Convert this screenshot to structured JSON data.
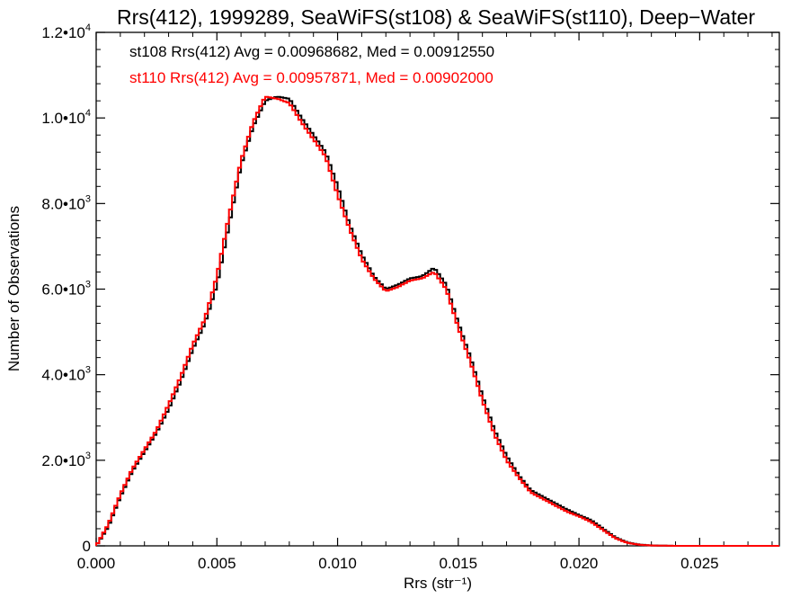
{
  "chart_data": {
    "type": "line",
    "title": "Rrs(412), 1999289, SeaWiFS(st108) & SeaWiFS(st110), Deep−Water",
    "xlabel": "Rrs (str⁻¹)",
    "ylabel": "Number of Observations",
    "xlim": [
      0.0,
      0.0283
    ],
    "ylim": [
      0,
      12000
    ],
    "x_ticks": [
      0.0,
      0.005,
      0.01,
      0.015,
      0.02,
      0.025
    ],
    "x_tick_labels": [
      "0.000",
      "0.005",
      "0.010",
      "0.015",
      "0.020",
      "0.025"
    ],
    "y_ticks": [
      0,
      2000,
      4000,
      6000,
      8000,
      10000,
      12000
    ],
    "y_tick_labels": [
      {
        "mant": "0",
        "exp": ""
      },
      {
        "mant": "2.0•10",
        "exp": "3"
      },
      {
        "mant": "4.0•10",
        "exp": "3"
      },
      {
        "mant": "6.0•10",
        "exp": "3"
      },
      {
        "mant": "8.0•10",
        "exp": "3"
      },
      {
        "mant": "1.0•10",
        "exp": "4"
      },
      {
        "mant": "1.2•10",
        "exp": "4"
      }
    ],
    "grid": false,
    "legend_placement": "top-left",
    "series": [
      {
        "name": "st108",
        "color": "#000000",
        "legend_text": "st108 Rrs(412) Avg = 0.00968682, Med = 0.00912550",
        "points": [
          [
            0.0,
            0
          ],
          [
            0.0005,
            450
          ],
          [
            0.001,
            1150
          ],
          [
            0.0015,
            1750
          ],
          [
            0.002,
            2200
          ],
          [
            0.0025,
            2650
          ],
          [
            0.003,
            3200
          ],
          [
            0.0035,
            3850
          ],
          [
            0.004,
            4600
          ],
          [
            0.0045,
            5200
          ],
          [
            0.005,
            6100
          ],
          [
            0.0055,
            7500
          ],
          [
            0.006,
            8900
          ],
          [
            0.0065,
            9800
          ],
          [
            0.007,
            10400
          ],
          [
            0.0075,
            10500
          ],
          [
            0.008,
            10450
          ],
          [
            0.0085,
            10000
          ],
          [
            0.009,
            9600
          ],
          [
            0.0095,
            9200
          ],
          [
            0.01,
            8400
          ],
          [
            0.0105,
            7500
          ],
          [
            0.011,
            6800
          ],
          [
            0.0115,
            6300
          ],
          [
            0.012,
            6000
          ],
          [
            0.0125,
            6100
          ],
          [
            0.013,
            6250
          ],
          [
            0.0135,
            6300
          ],
          [
            0.014,
            6500
          ],
          [
            0.0145,
            6100
          ],
          [
            0.015,
            5200
          ],
          [
            0.0155,
            4400
          ],
          [
            0.016,
            3500
          ],
          [
            0.0165,
            2700
          ],
          [
            0.017,
            2100
          ],
          [
            0.0175,
            1650
          ],
          [
            0.018,
            1300
          ],
          [
            0.0185,
            1150
          ],
          [
            0.019,
            1000
          ],
          [
            0.0195,
            850
          ],
          [
            0.02,
            720
          ],
          [
            0.0205,
            600
          ],
          [
            0.021,
            400
          ],
          [
            0.0215,
            200
          ],
          [
            0.022,
            80
          ],
          [
            0.0225,
            30
          ],
          [
            0.023,
            10
          ],
          [
            0.024,
            0
          ],
          [
            0.0283,
            0
          ]
        ]
      },
      {
        "name": "st110",
        "color": "#ff0000",
        "legend_text": "st110 Rrs(412) Avg = 0.00957871, Med = 0.00902000",
        "points": [
          [
            0.0,
            0
          ],
          [
            0.0005,
            500
          ],
          [
            0.001,
            1200
          ],
          [
            0.0015,
            1800
          ],
          [
            0.002,
            2250
          ],
          [
            0.0025,
            2700
          ],
          [
            0.003,
            3300
          ],
          [
            0.0035,
            3950
          ],
          [
            0.004,
            4700
          ],
          [
            0.0045,
            5300
          ],
          [
            0.005,
            6300
          ],
          [
            0.0055,
            7700
          ],
          [
            0.006,
            9000
          ],
          [
            0.0065,
            9900
          ],
          [
            0.007,
            10500
          ],
          [
            0.0075,
            10450
          ],
          [
            0.008,
            10350
          ],
          [
            0.0085,
            9900
          ],
          [
            0.009,
            9500
          ],
          [
            0.0095,
            9100
          ],
          [
            0.01,
            8200
          ],
          [
            0.0105,
            7400
          ],
          [
            0.011,
            6700
          ],
          [
            0.0115,
            6250
          ],
          [
            0.012,
            5950
          ],
          [
            0.0125,
            6050
          ],
          [
            0.013,
            6200
          ],
          [
            0.0135,
            6250
          ],
          [
            0.014,
            6400
          ],
          [
            0.0145,
            6000
          ],
          [
            0.015,
            5100
          ],
          [
            0.0155,
            4300
          ],
          [
            0.016,
            3400
          ],
          [
            0.0165,
            2600
          ],
          [
            0.017,
            2000
          ],
          [
            0.0175,
            1600
          ],
          [
            0.018,
            1250
          ],
          [
            0.0185,
            1100
          ],
          [
            0.019,
            950
          ],
          [
            0.0195,
            800
          ],
          [
            0.02,
            690
          ],
          [
            0.0205,
            560
          ],
          [
            0.021,
            370
          ],
          [
            0.0215,
            180
          ],
          [
            0.022,
            70
          ],
          [
            0.0225,
            25
          ],
          [
            0.023,
            8
          ],
          [
            0.024,
            0
          ],
          [
            0.0283,
            0
          ]
        ]
      }
    ]
  }
}
